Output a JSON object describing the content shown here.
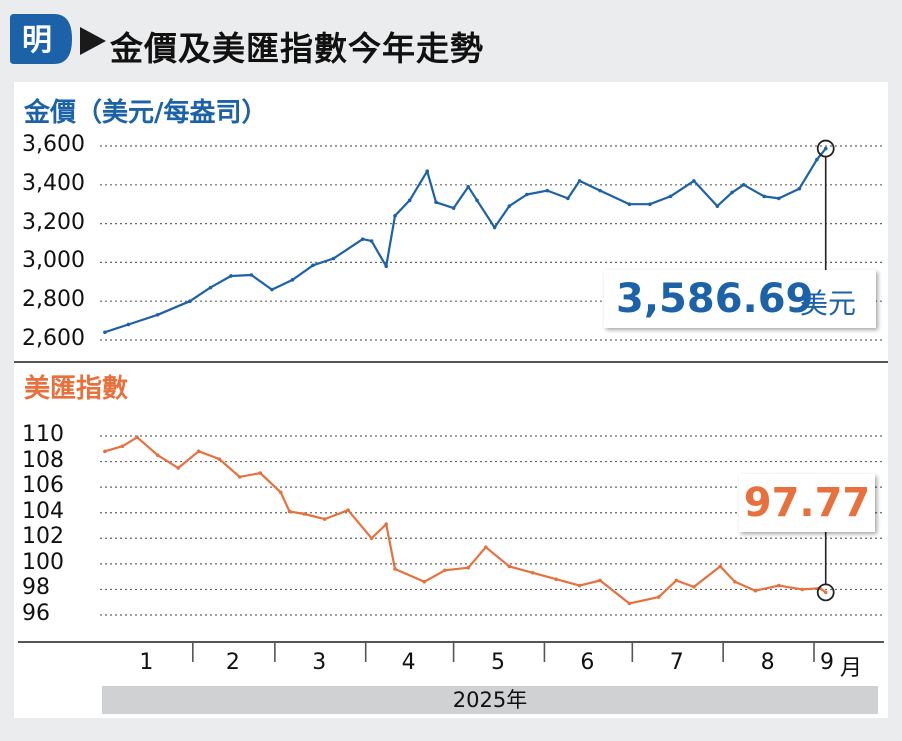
{
  "header": {
    "logo_char": "明",
    "title": "金價及美匯指數今年走勢"
  },
  "colors": {
    "gold": "#1c62a8",
    "usd": "#e8703d",
    "background": "#ebeced",
    "year_bar": "#d0d1d3"
  },
  "x_axis": {
    "months": [
      "1",
      "2",
      "3",
      "4",
      "5",
      "6",
      "7",
      "8",
      "9"
    ],
    "month_suffix": "月",
    "year_label": "2025年"
  },
  "callouts": {
    "gold_value": "3,586.69",
    "gold_unit": "美元",
    "usd_value": "97.77"
  },
  "chart_data": [
    {
      "type": "line",
      "title": "金價（美元/每盎司）",
      "ytick_labels": [
        "3,600",
        "3,400",
        "3,200",
        "3,000",
        "2,800",
        "2,600"
      ],
      "yticks": [
        3600,
        3400,
        3200,
        3000,
        2800,
        2600
      ],
      "ylim": [
        2600,
        3600
      ],
      "grid": true,
      "series": [
        {
          "x": [
            "2025-01-02",
            "2025-01-10",
            "2025-01-20",
            "2025-01-31",
            "2025-02-07",
            "2025-02-14",
            "2025-02-21",
            "2025-02-28",
            "2025-03-07",
            "2025-03-14",
            "2025-03-21",
            "2025-03-31",
            "2025-04-03",
            "2025-04-08",
            "2025-04-11",
            "2025-04-16",
            "2025-04-22",
            "2025-04-25",
            "2025-05-01",
            "2025-05-06",
            "2025-05-09",
            "2025-05-15",
            "2025-05-20",
            "2025-05-26",
            "2025-06-02",
            "2025-06-09",
            "2025-06-13",
            "2025-06-20",
            "2025-06-30",
            "2025-07-07",
            "2025-07-14",
            "2025-07-22",
            "2025-07-30",
            "2025-08-04",
            "2025-08-08",
            "2025-08-15",
            "2025-08-20",
            "2025-08-27",
            "2025-09-02",
            "2025-09-05"
          ],
          "values": [
            2640,
            2680,
            2730,
            2800,
            2870,
            2930,
            2935,
            2860,
            2910,
            2985,
            3020,
            3120,
            3110,
            2980,
            3240,
            3320,
            3470,
            3310,
            3280,
            3390,
            3320,
            3180,
            3290,
            3350,
            3370,
            3330,
            3420,
            3370,
            3300,
            3300,
            3340,
            3420,
            3290,
            3360,
            3400,
            3340,
            3330,
            3380,
            3530,
            3586.69
          ]
        }
      ]
    },
    {
      "type": "line",
      "title": "美匯指數",
      "ytick_labels": [
        "110",
        "108",
        "106",
        "104",
        "102",
        "100",
        "98",
        "96"
      ],
      "yticks": [
        110,
        108,
        106,
        104,
        102,
        100,
        98,
        96
      ],
      "ylim": [
        96,
        110
      ],
      "grid": true,
      "series": [
        {
          "x": [
            "2025-01-02",
            "2025-01-08",
            "2025-01-13",
            "2025-01-20",
            "2025-01-27",
            "2025-02-03",
            "2025-02-10",
            "2025-02-17",
            "2025-02-24",
            "2025-03-03",
            "2025-03-06",
            "2025-03-11",
            "2025-03-18",
            "2025-03-26",
            "2025-04-03",
            "2025-04-08",
            "2025-04-11",
            "2025-04-21",
            "2025-04-28",
            "2025-05-06",
            "2025-05-12",
            "2025-05-20",
            "2025-05-28",
            "2025-06-05",
            "2025-06-13",
            "2025-06-20",
            "2025-06-30",
            "2025-07-10",
            "2025-07-16",
            "2025-07-22",
            "2025-07-31",
            "2025-08-05",
            "2025-08-12",
            "2025-08-20",
            "2025-08-28",
            "2025-09-03",
            "2025-09-05"
          ],
          "values": [
            108.8,
            109.2,
            109.9,
            108.5,
            107.5,
            108.8,
            108.2,
            106.8,
            107.1,
            105.6,
            104.1,
            103.9,
            103.5,
            104.2,
            102.0,
            103.1,
            99.6,
            98.6,
            99.5,
            99.7,
            101.3,
            99.8,
            99.3,
            98.8,
            98.3,
            98.7,
            96.9,
            97.4,
            98.7,
            98.2,
            99.8,
            98.6,
            97.9,
            98.3,
            98.0,
            98.1,
            97.77
          ]
        }
      ]
    }
  ]
}
